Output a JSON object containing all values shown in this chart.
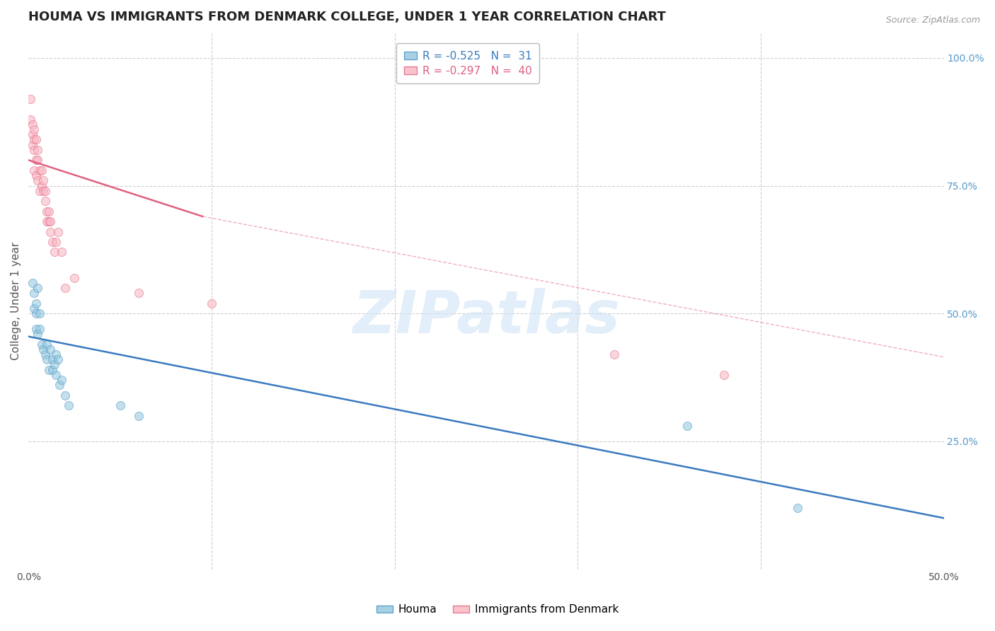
{
  "title": "HOUMA VS IMMIGRANTS FROM DENMARK COLLEGE, UNDER 1 YEAR CORRELATION CHART",
  "source": "Source: ZipAtlas.com",
  "ylabel": "College, Under 1 year",
  "xlim": [
    0.0,
    0.5
  ],
  "ylim": [
    0.0,
    1.05
  ],
  "legend_entries": [
    {
      "label": "R = -0.525   N =  31",
      "color": "#a8c4e0"
    },
    {
      "label": "R = -0.297   N =  40",
      "color": "#f4a0b0"
    }
  ],
  "houma_scatter_x": [
    0.002,
    0.003,
    0.003,
    0.004,
    0.004,
    0.004,
    0.005,
    0.005,
    0.006,
    0.006,
    0.007,
    0.008,
    0.009,
    0.01,
    0.01,
    0.011,
    0.012,
    0.013,
    0.013,
    0.014,
    0.015,
    0.015,
    0.016,
    0.017,
    0.018,
    0.02,
    0.022,
    0.05,
    0.06,
    0.36,
    0.42
  ],
  "houma_scatter_y": [
    0.56,
    0.54,
    0.51,
    0.52,
    0.5,
    0.47,
    0.55,
    0.46,
    0.5,
    0.47,
    0.44,
    0.43,
    0.42,
    0.44,
    0.41,
    0.39,
    0.43,
    0.41,
    0.39,
    0.4,
    0.42,
    0.38,
    0.41,
    0.36,
    0.37,
    0.34,
    0.32,
    0.32,
    0.3,
    0.28,
    0.12
  ],
  "denmark_scatter_x": [
    0.001,
    0.001,
    0.002,
    0.002,
    0.002,
    0.003,
    0.003,
    0.003,
    0.003,
    0.004,
    0.004,
    0.004,
    0.005,
    0.005,
    0.005,
    0.006,
    0.006,
    0.007,
    0.007,
    0.008,
    0.008,
    0.009,
    0.009,
    0.01,
    0.01,
    0.011,
    0.011,
    0.012,
    0.012,
    0.013,
    0.014,
    0.015,
    0.016,
    0.018,
    0.02,
    0.025,
    0.06,
    0.1,
    0.32,
    0.38
  ],
  "denmark_scatter_y": [
    0.92,
    0.88,
    0.87,
    0.85,
    0.83,
    0.86,
    0.84,
    0.82,
    0.78,
    0.84,
    0.8,
    0.77,
    0.82,
    0.8,
    0.76,
    0.78,
    0.74,
    0.78,
    0.75,
    0.76,
    0.74,
    0.74,
    0.72,
    0.7,
    0.68,
    0.7,
    0.68,
    0.68,
    0.66,
    0.64,
    0.62,
    0.64,
    0.66,
    0.62,
    0.55,
    0.57,
    0.54,
    0.52,
    0.42,
    0.38
  ],
  "houma_line_x": [
    0.0,
    0.5
  ],
  "houma_line_y": [
    0.455,
    0.1
  ],
  "denmark_solid_line_x": [
    0.0,
    0.095
  ],
  "denmark_solid_line_y": [
    0.8,
    0.69
  ],
  "denmark_dashed_line_x": [
    0.095,
    0.5
  ],
  "denmark_dashed_line_y": [
    0.69,
    0.415
  ],
  "houma_color": "#92c5de",
  "houma_edge_color": "#4393c3",
  "denmark_color": "#f9b4c0",
  "denmark_edge_color": "#e06080",
  "houma_line_color": "#3a7abf",
  "denmark_line_color": "#e06080",
  "watermark_text": "ZIPatlas",
  "background_color": "#ffffff",
  "grid_color": "#d0d0d0",
  "title_fontsize": 13,
  "axis_label_fontsize": 11,
  "tick_fontsize": 10,
  "legend_fontsize": 11,
  "scatter_size": 75,
  "scatter_alpha": 0.55
}
